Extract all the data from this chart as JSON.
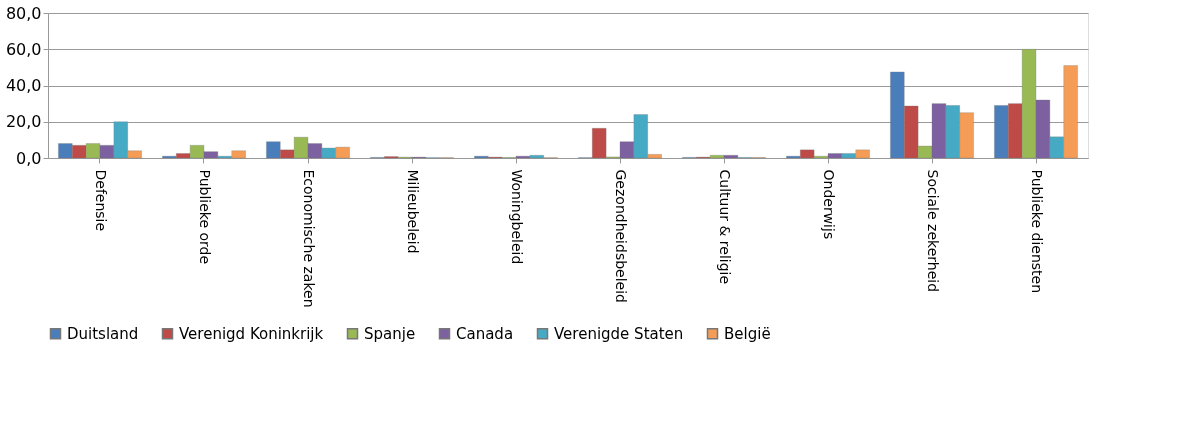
{
  "chart_data": {
    "type": "bar",
    "categories": [
      "Defensie",
      "Publieke orde",
      "Economische zaken",
      "Milieubeleid",
      "Woningbeleid",
      "Gezondheidsbeleid",
      "Cultuur & religie",
      "Onderwijs",
      "Sociale zekerheid",
      "Publieke diensten"
    ],
    "series": [
      {
        "name": "Duitsland",
        "color": "#4a7ebb",
        "values": [
          8,
          1,
          9,
          0.3,
          1,
          0.2,
          0.3,
          1,
          47.5,
          29
        ]
      },
      {
        "name": "Verenigd Koninkrijk",
        "color": "#be4b48",
        "values": [
          7,
          2.5,
          4.5,
          0.8,
          0.5,
          16.4,
          0.5,
          4.5,
          28.7,
          30
        ]
      },
      {
        "name": "Spanje",
        "color": "#98b954",
        "values": [
          8,
          7,
          11.5,
          0.5,
          0.3,
          0.6,
          1.5,
          1,
          6.6,
          60
        ]
      },
      {
        "name": "Canada",
        "color": "#7d60a0",
        "values": [
          7,
          3.5,
          8,
          0.5,
          1,
          9,
          1.5,
          2.5,
          30,
          32
        ]
      },
      {
        "name": "Verenigde Staten",
        "color": "#46aac5",
        "values": [
          20,
          1,
          5.5,
          0.2,
          1.5,
          24,
          0.3,
          2.5,
          29,
          11.7
        ]
      },
      {
        "name": "België",
        "color": "#f59d56",
        "values": [
          4,
          4,
          6,
          0.2,
          0.2,
          2,
          0.3,
          4.5,
          25,
          51
        ]
      }
    ],
    "ylim": [
      0,
      80
    ],
    "yticks": [
      {
        "value": 0,
        "label": "0,0"
      },
      {
        "value": 20,
        "label": "20,0"
      },
      {
        "value": 40,
        "label": "40,0"
      },
      {
        "value": 60,
        "label": "60,0"
      },
      {
        "value": 80,
        "label": "80,0"
      }
    ],
    "grid": "y",
    "legend": "bottom"
  }
}
